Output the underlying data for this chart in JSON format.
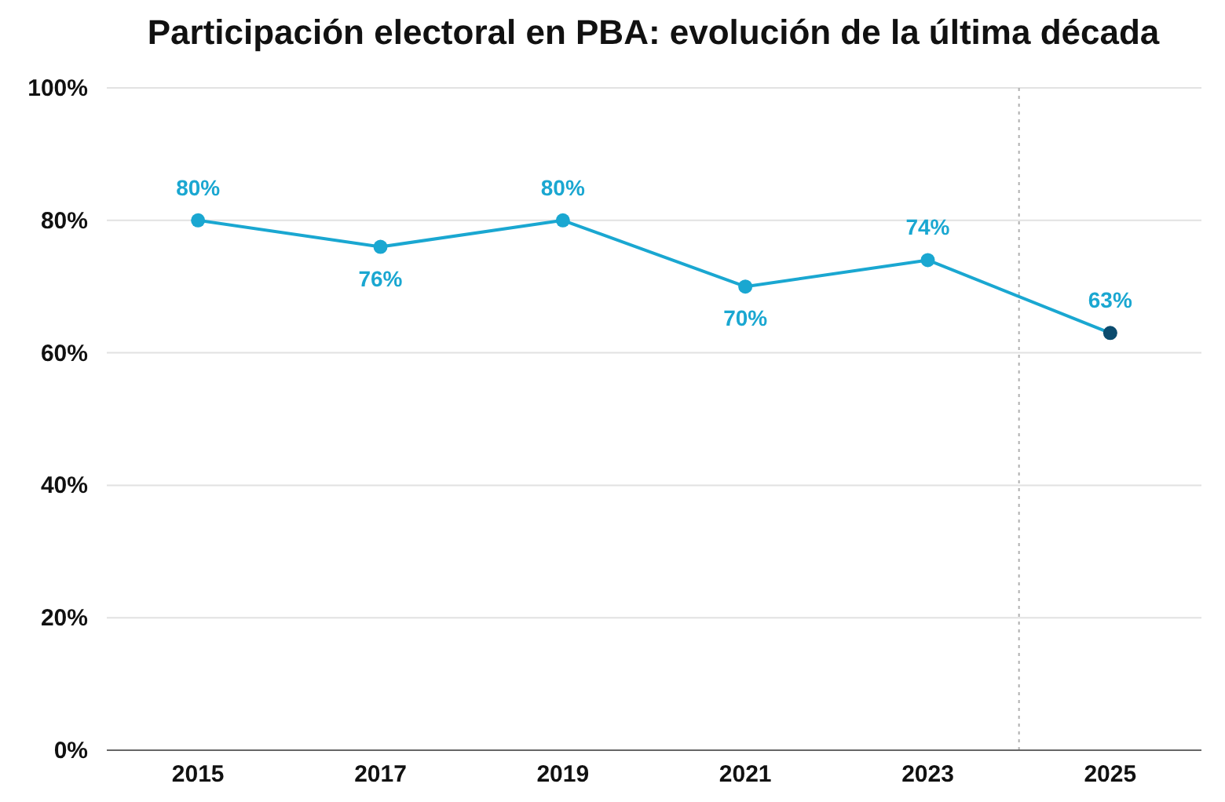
{
  "chart_data": {
    "type": "line",
    "title": "Participación electoral en PBA: evolución de la última década",
    "x": [
      2015,
      2017,
      2019,
      2021,
      2023,
      2025
    ],
    "series": [
      {
        "color": "#1aa7d1",
        "colors": [
          "#1aa7d1",
          "#1aa7d1",
          "#1aa7d1",
          "#1aa7d1",
          "#1aa7d1",
          "#0b4b6e"
        ],
        "values": [
          80,
          76,
          80,
          70,
          74,
          63
        ],
        "value_labels": [
          "80%",
          "76%",
          "80%",
          "70%",
          "74%",
          "63%"
        ]
      }
    ],
    "xlim": [
      2014,
      2026
    ],
    "xticks": [
      2015,
      2017,
      2019,
      2021,
      2023,
      2025
    ],
    "ylim": [
      0,
      100
    ],
    "yticks": [
      {
        "value": 0,
        "label": "0%"
      },
      {
        "value": 20,
        "label": "20%"
      },
      {
        "value": 40,
        "label": "40%"
      },
      {
        "value": 60,
        "label": "60%"
      },
      {
        "value": 80,
        "label": "80%"
      },
      {
        "value": 100,
        "label": "100%"
      }
    ],
    "grid": "y",
    "marker": "circle",
    "line_style": "solid",
    "ref_lines": [
      {
        "axis": "x",
        "value": 2024,
        "color": "#b0b0b0",
        "line_style": "dotted"
      }
    ]
  }
}
